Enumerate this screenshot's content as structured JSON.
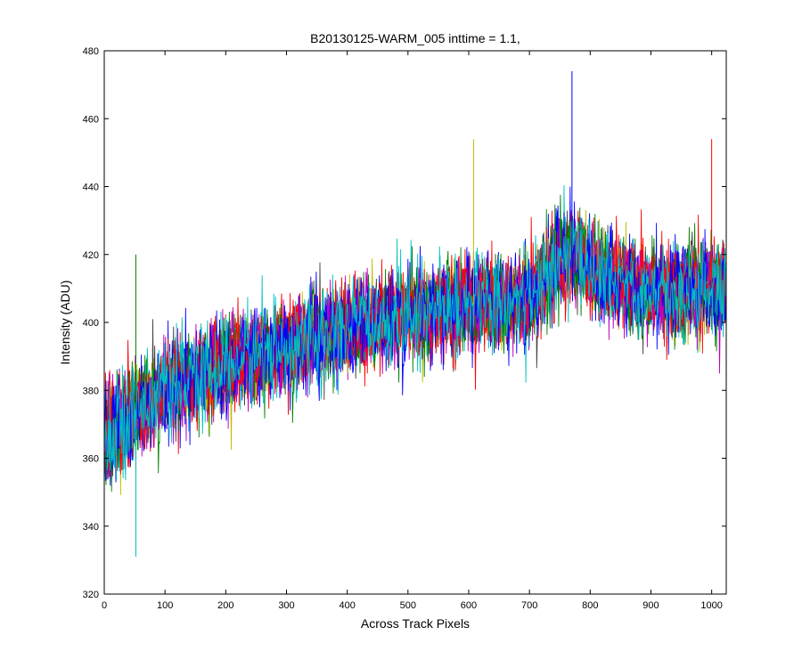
{
  "chart_data": {
    "type": "line",
    "title": "B20130125-WARM_005 inttime = 1.1,",
    "xlabel": "Across Track Pixels",
    "ylabel": "Intensity (ADU)",
    "xlim": [
      0,
      1024
    ],
    "ylim": [
      320,
      480
    ],
    "xticks": [
      0,
      100,
      200,
      300,
      400,
      500,
      600,
      700,
      800,
      900,
      1000
    ],
    "yticks": [
      320,
      340,
      360,
      380,
      400,
      420,
      440,
      460,
      480
    ],
    "grid": false,
    "legend": "none",
    "series_colors": [
      "#0000ff",
      "#008000",
      "#ff0000",
      "#00bfbf",
      "#bf00bf",
      "#bfbf00",
      "#404040"
    ],
    "trend": {
      "x": [
        0,
        25,
        50,
        100,
        200,
        300,
        400,
        500,
        600,
        700,
        750,
        780,
        810,
        900,
        1000,
        1024
      ],
      "y": [
        366,
        370,
        374,
        380,
        387,
        393,
        398,
        402,
        405,
        407,
        418,
        420,
        414,
        409,
        410,
        410
      ]
    },
    "noise_amplitude": 12,
    "peaks": [
      {
        "x": 52,
        "y": 420
      },
      {
        "x": 52,
        "y": 331
      },
      {
        "x": 608,
        "y": 454
      },
      {
        "x": 770,
        "y": 474
      },
      {
        "x": 1000,
        "y": 454
      }
    ]
  }
}
